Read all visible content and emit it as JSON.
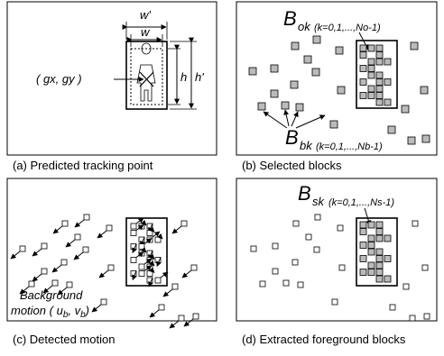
{
  "panel_a": {
    "caption": "(a) Predicted tracking point",
    "labels": {
      "w_outer": "w'",
      "w_inner": "w",
      "h_inner": "h",
      "h_outer": "h'",
      "point": "( gx, gy )"
    }
  },
  "panel_b": {
    "caption": "(b) Selected blocks",
    "object_label": {
      "symbol": "B",
      "subscript": "ok",
      "range": "(k=0,1,...,No-1)"
    },
    "background_label": {
      "symbol": "B",
      "subscript": "bk",
      "range": "(k=0,1,...,Nb-1)"
    }
  },
  "panel_c": {
    "caption": "(c) Detected motion",
    "label": {
      "line1": "Background",
      "line2_start": "motion ( u",
      "sub_u": "b",
      "middle": ", v",
      "sub_v": "b",
      "end": ")"
    }
  },
  "panel_d": {
    "caption": "(d) Extracted foreground blocks",
    "object_label": {
      "symbol": "B",
      "subscript": "sk",
      "range": "(k=0,1,...,Ns-1)"
    }
  }
}
